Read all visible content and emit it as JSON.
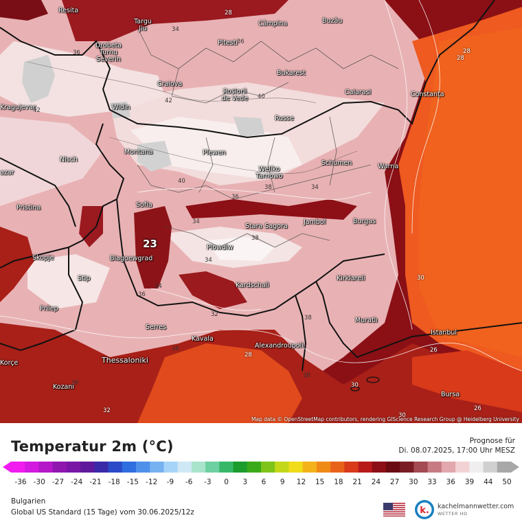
{
  "title": "Temperatur 2m (°C)",
  "forecast_label": "Prognose für",
  "forecast_date": "Di. 08.07.2025, 17:00 Uhr MESZ",
  "region": "Bulgarien",
  "model": "Global US Standard (15 Tage) vom 30.06.2025/12z",
  "attribution": "Map data © OpenStreetMap contributors, rendering GIScience Research Group @ Heidelberg University",
  "brand": {
    "name": "kachelmannwetter.com",
    "sub": "WETTER HD"
  },
  "min_marker": "23",
  "colorbar": {
    "ticks": [
      "-36",
      "-30",
      "-27",
      "-24",
      "-21",
      "-18",
      "-15",
      "-12",
      "-9",
      "-6",
      "-3",
      "0",
      "3",
      "6",
      "9",
      "12",
      "15",
      "18",
      "21",
      "24",
      "27",
      "30",
      "33",
      "36",
      "39",
      "44",
      "50"
    ],
    "colors": [
      "#f01cf0",
      "#d21ae0",
      "#b418c8",
      "#9016b0",
      "#7a16a6",
      "#5e1a9a",
      "#3a2aa8",
      "#2a4ac8",
      "#2f6ee0",
      "#4e90ea",
      "#76b2f2",
      "#a6d4f8",
      "#cfe8f6",
      "#a8e4cc",
      "#6cd0a0",
      "#36b868",
      "#1c9c2c",
      "#3aaa1a",
      "#7ec41a",
      "#c4d81a",
      "#f0dc1a",
      "#f4b21a",
      "#f08a16",
      "#e8621a",
      "#d83a1a",
      "#b81a1a",
      "#8c0e16",
      "#6a0a12",
      "#7a1c24",
      "#a44a52",
      "#c87a82",
      "#e2a8ae",
      "#f2d2d4",
      "#f0eeee",
      "#d0d0d0",
      "#a8a8a8"
    ]
  },
  "cities": [
    {
      "name": "Resita"
    },
    {
      "name": "Targu Jiu"
    },
    {
      "name": "Drobeta Turnu Severin"
    },
    {
      "name": "Pitesti"
    },
    {
      "name": "Câmpina"
    },
    {
      "name": "Buzău"
    },
    {
      "name": "Craiova"
    },
    {
      "name": "Rosiorii de Vede"
    },
    {
      "name": "Bukarest"
    },
    {
      "name": "Calarasi"
    },
    {
      "name": "Constanța"
    },
    {
      "name": "Kragujevac"
    },
    {
      "name": "Widin"
    },
    {
      "name": "Russe"
    },
    {
      "name": "Montana"
    },
    {
      "name": "Plewen"
    },
    {
      "name": "Nisch"
    },
    {
      "name": "Schumen"
    },
    {
      "name": "Warna"
    },
    {
      "name": "Weliko Tarnowo"
    },
    {
      "name": "Pristina"
    },
    {
      "name": "Sofia"
    },
    {
      "name": "Stara Sagora"
    },
    {
      "name": "Jambol"
    },
    {
      "name": "Burgas"
    },
    {
      "name": "Plowdiw"
    },
    {
      "name": "Skopje"
    },
    {
      "name": "Blagoewgrad"
    },
    {
      "name": "Stip"
    },
    {
      "name": "Kardschali"
    },
    {
      "name": "Kirklareli"
    },
    {
      "name": "Prilep"
    },
    {
      "name": "Muratlı"
    },
    {
      "name": "Serres"
    },
    {
      "name": "Istanbul"
    },
    {
      "name": "Kavala"
    },
    {
      "name": "Alexandroupoli"
    },
    {
      "name": "Thessaloniki"
    },
    {
      "name": "Korçe"
    },
    {
      "name": "Kozani"
    },
    {
      "name": "Bursa"
    },
    {
      "name": "azar"
    }
  ],
  "contour_labels": [
    "28",
    "34",
    "36",
    "42",
    "36",
    "40",
    "42",
    "40",
    "36",
    "38",
    "34",
    "34",
    "34",
    "38",
    "34",
    "36",
    "38",
    "36",
    "32",
    "30",
    "38",
    "36",
    "28",
    "26",
    "28",
    "30",
    "28",
    "26",
    "30",
    "32"
  ]
}
